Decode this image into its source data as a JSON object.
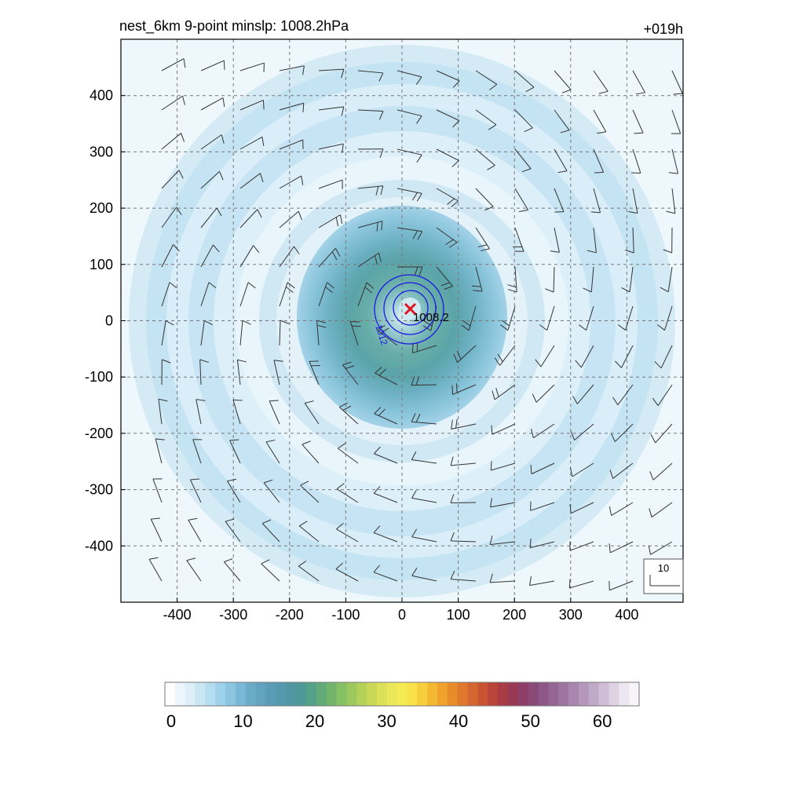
{
  "header": {
    "title": "nest_6km  9-point minslp: 1008.2hPa",
    "forecast_hour": "+019h"
  },
  "map": {
    "x_ticks": [
      "-400",
      "-300",
      "-200",
      "-100",
      "0",
      "100",
      "200",
      "300",
      "400"
    ],
    "y_ticks": [
      "400",
      "300",
      "200",
      "100",
      "0",
      "-100",
      "-200",
      "-300",
      "-400"
    ],
    "x_range_km": [
      -500,
      500
    ],
    "y_range_km": [
      -500,
      500
    ],
    "grid": true,
    "center_marker": {
      "symbol": "×",
      "color": "#e0141e",
      "x_km": 15,
      "y_km": 22
    },
    "center_label": "1008.2",
    "contour_label": "1012",
    "contour_color": "#1a1adf",
    "wind_reference_label": "10"
  },
  "colorbar": {
    "tick_labels": [
      "0",
      "10",
      "20",
      "30",
      "40",
      "50",
      "60"
    ],
    "range": [
      0,
      66
    ],
    "colors": [
      "#ffffff",
      "#eef6fc",
      "#ddeff9",
      "#c9e6f5",
      "#b5ddf1",
      "#9ed1ea",
      "#8bc5e0",
      "#79b8d6",
      "#6badc9",
      "#62a3bf",
      "#5a9cb6",
      "#5498ad",
      "#5197a3",
      "#4f9898",
      "#55a088",
      "#62aa78",
      "#72b46c",
      "#86bf64",
      "#9cc85e",
      "#b3d059",
      "#c9d957",
      "#dde15a",
      "#ece75a",
      "#f4ea52",
      "#f8e14a",
      "#f7cf3c",
      "#f4b932",
      "#f0a22c",
      "#e88c2a",
      "#df782d",
      "#d56630",
      "#c85434",
      "#b94439",
      "#a83c45",
      "#983a55",
      "#8e3f67",
      "#8a4a78",
      "#8e5787",
      "#956594",
      "#9e75a1",
      "#a886ae",
      "#b497bb",
      "#c1aac8",
      "#cfbdd5",
      "#ddd1e2",
      "#ece6f0",
      "#f8f5fa"
    ]
  }
}
